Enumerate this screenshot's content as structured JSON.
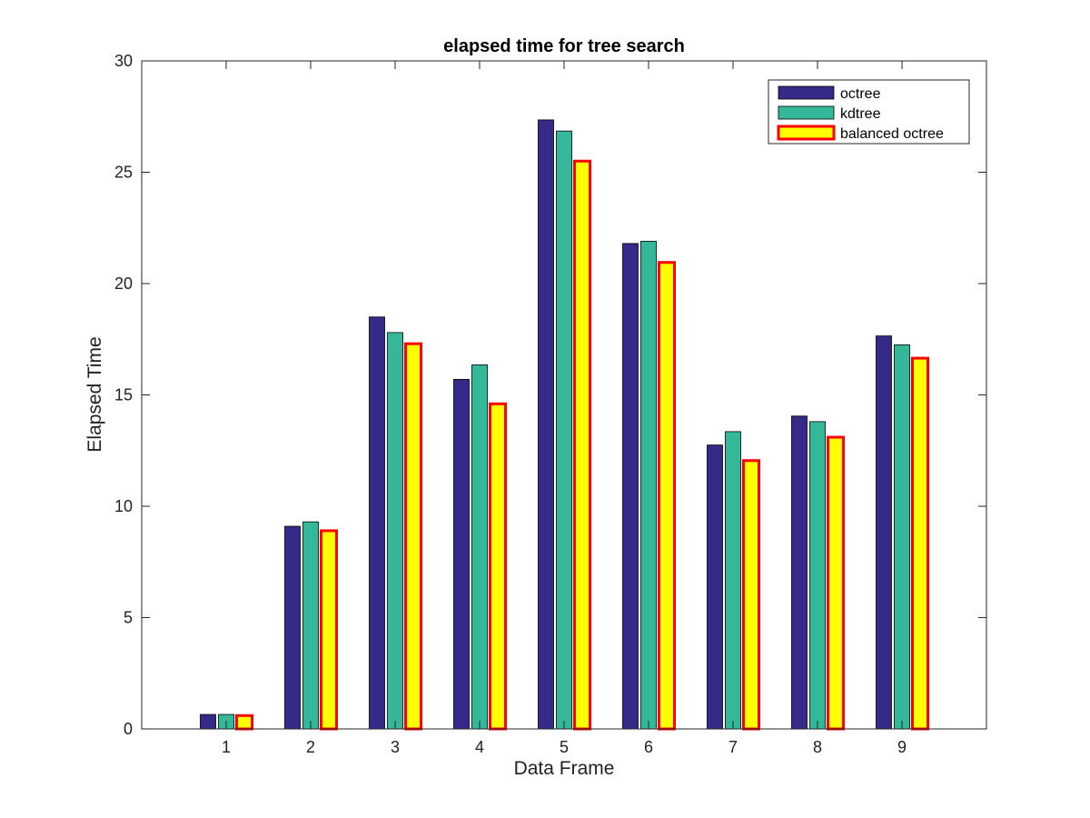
{
  "chart_data": {
    "type": "bar",
    "title": "elapsed time for tree search",
    "xlabel": "Data Frame",
    "ylabel": "Elapsed Time",
    "categories": [
      "1",
      "2",
      "3",
      "4",
      "5",
      "6",
      "7",
      "8",
      "9"
    ],
    "ylim": [
      0,
      30
    ],
    "yticks": [
      0,
      5,
      10,
      15,
      20,
      25,
      30
    ],
    "grid": false,
    "legend_position": "top-right",
    "series": [
      {
        "name": "octree",
        "fill": "#352a87",
        "edge": "#000000",
        "values": [
          0.65,
          9.1,
          18.5,
          15.7,
          27.35,
          21.8,
          12.75,
          14.05,
          17.65
        ]
      },
      {
        "name": "kdtree",
        "fill": "#35b79a",
        "edge": "#000000",
        "values": [
          0.65,
          9.3,
          17.8,
          16.35,
          26.85,
          21.9,
          13.35,
          13.8,
          17.25
        ]
      },
      {
        "name": "balanced octree",
        "fill": "#ffff00",
        "edge": "#ff0000",
        "values": [
          0.6,
          8.9,
          17.3,
          14.6,
          25.5,
          20.95,
          12.05,
          13.1,
          16.65
        ]
      }
    ]
  }
}
